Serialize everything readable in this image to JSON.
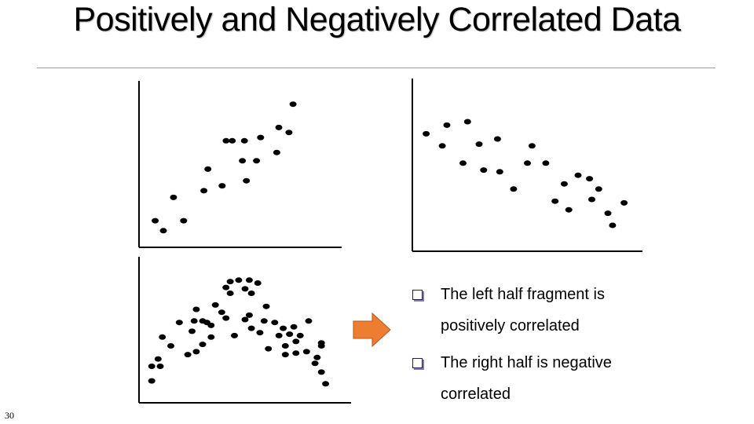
{
  "slide": {
    "title": "Positively and Negatively Correlated Data",
    "page_number": "30"
  },
  "bullets": [
    "The left half fragment is positively correlated",
    "The right half is negative correlated"
  ],
  "arrow": {
    "color": "#ED7D31",
    "direction": "right"
  },
  "chart_data": [
    {
      "type": "scatter",
      "title": "",
      "xlabel": "",
      "ylabel": "",
      "grid": false,
      "axes": "left-bottom, no ticks",
      "x": [
        0.08,
        0.12,
        0.17,
        0.22,
        0.32,
        0.34,
        0.41,
        0.43,
        0.46,
        0.51,
        0.52,
        0.53,
        0.58,
        0.6,
        0.68,
        0.69,
        0.74,
        0.76
      ],
      "y": [
        0.16,
        0.1,
        0.3,
        0.16,
        0.34,
        0.47,
        0.37,
        0.64,
        0.64,
        0.52,
        0.64,
        0.4,
        0.52,
        0.66,
        0.57,
        0.72,
        0.69,
        0.86
      ]
    },
    {
      "type": "scatter",
      "title": "",
      "xlabel": "",
      "ylabel": "",
      "grid": false,
      "axes": "left-bottom, no ticks",
      "x": [
        0.06,
        0.13,
        0.15,
        0.22,
        0.24,
        0.29,
        0.31,
        0.37,
        0.38,
        0.44,
        0.5,
        0.52,
        0.58,
        0.62,
        0.66,
        0.68,
        0.72,
        0.77,
        0.78,
        0.81,
        0.85,
        0.87,
        0.92
      ],
      "y": [
        0.68,
        0.61,
        0.73,
        0.51,
        0.75,
        0.62,
        0.47,
        0.65,
        0.46,
        0.36,
        0.51,
        0.61,
        0.51,
        0.29,
        0.39,
        0.24,
        0.44,
        0.42,
        0.3,
        0.36,
        0.22,
        0.15,
        0.28
      ]
    },
    {
      "type": "scatter",
      "title": "",
      "xlabel": "",
      "ylabel": "",
      "grid": false,
      "axes": "left-bottom, no ticks",
      "x": [
        0.06,
        0.06,
        0.09,
        0.1,
        0.11,
        0.15,
        0.19,
        0.23,
        0.25,
        0.26,
        0.27,
        0.27,
        0.3,
        0.3,
        0.32,
        0.34,
        0.34,
        0.36,
        0.39,
        0.41,
        0.41,
        0.43,
        0.43,
        0.45,
        0.47,
        0.5,
        0.5,
        0.52,
        0.52,
        0.53,
        0.53,
        0.56,
        0.57,
        0.59,
        0.6,
        0.61,
        0.64,
        0.66,
        0.68,
        0.69,
        0.69,
        0.71,
        0.73,
        0.74,
        0.74,
        0.76,
        0.79,
        0.8,
        0.83,
        0.84,
        0.86,
        0.86,
        0.86,
        0.88
      ],
      "y": [
        0.15,
        0.25,
        0.3,
        0.25,
        0.45,
        0.39,
        0.55,
        0.33,
        0.49,
        0.56,
        0.64,
        0.35,
        0.56,
        0.4,
        0.55,
        0.53,
        0.45,
        0.67,
        0.62,
        0.79,
        0.58,
        0.83,
        0.75,
        0.46,
        0.84,
        0.57,
        0.78,
        0.84,
        0.6,
        0.75,
        0.51,
        0.82,
        0.48,
        0.56,
        0.66,
        0.37,
        0.55,
        0.46,
        0.51,
        0.39,
        0.33,
        0.47,
        0.52,
        0.42,
        0.34,
        0.46,
        0.35,
        0.56,
        0.27,
        0.31,
        0.21,
        0.39,
        0.41,
        0.13
      ]
    }
  ]
}
